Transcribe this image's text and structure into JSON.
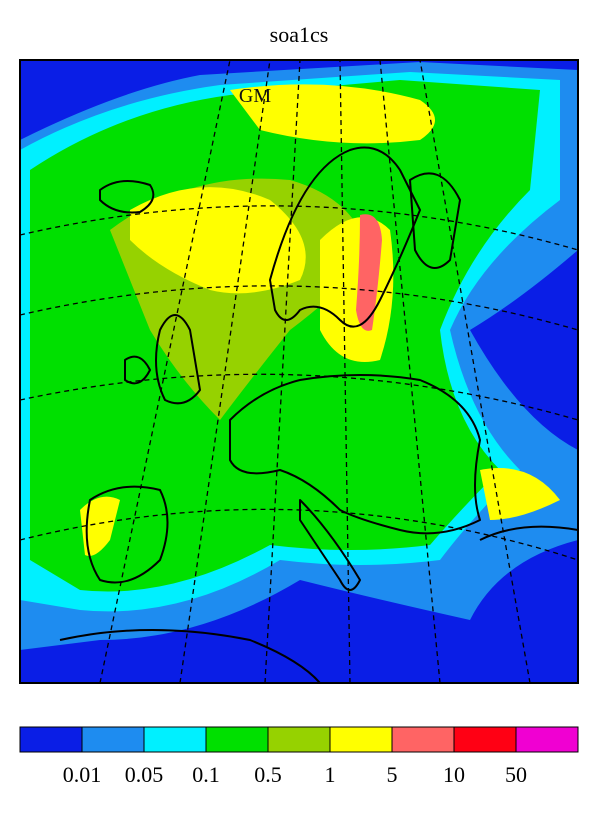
{
  "title": "soa1cs",
  "map": {
    "label": "GM"
  },
  "colorbar": {
    "colors": [
      "#0a1ee6",
      "#1e8cf0",
      "#00f0ff",
      "#00e000",
      "#96d200",
      "#ffff00",
      "#ff6464",
      "#ff0014",
      "#f000d2"
    ],
    "ticks": [
      0.01,
      0.05,
      0.1,
      0.5,
      1,
      5,
      10,
      50
    ]
  }
}
